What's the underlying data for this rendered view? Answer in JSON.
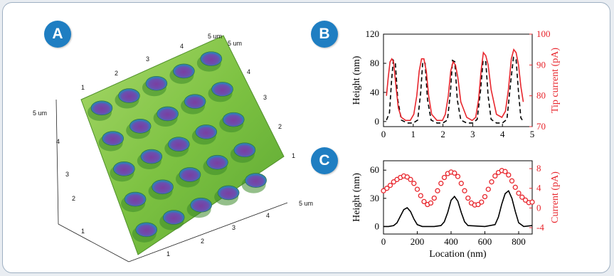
{
  "panels": {
    "a": {
      "label": "A"
    },
    "b": {
      "label": "B"
    },
    "c": {
      "label": "C"
    }
  },
  "afm": {
    "corner_labels": [
      "5 um",
      "5 um",
      "5 um",
      "5 um"
    ],
    "top_ticks": [
      "1",
      "2",
      "3",
      "4"
    ],
    "right_ticks": [
      "4",
      "3",
      "2",
      "1"
    ],
    "left_ticks": [
      "4",
      "3",
      "2",
      "1"
    ],
    "bottom_ticks": [
      "1",
      "2",
      "3",
      "4"
    ],
    "colors": {
      "surface": "#7dc242",
      "pit": "#7a3fa0",
      "pit_rim": "#2e7fb8"
    }
  },
  "chart_data": [
    {
      "type": "line",
      "panel": "B",
      "xlabel": "",
      "ylabel": "Height (nm)",
      "y2label": "Tip current (pA)",
      "xlim": [
        0,
        5
      ],
      "ylim": [
        -7,
        120
      ],
      "y2lim": [
        70,
        100
      ],
      "xticks": [
        0,
        1,
        2,
        3,
        4,
        5
      ],
      "yticks": [
        0,
        40,
        80,
        120
      ],
      "y2ticks": [
        70,
        80,
        90,
        100
      ],
      "series": [
        {
          "axis": "left",
          "style": "dashed",
          "color": "#000000",
          "x": [
            0.1,
            0.2,
            0.27,
            0.33,
            0.4,
            0.48,
            0.6,
            0.8,
            1.0,
            1.15,
            1.25,
            1.32,
            1.4,
            1.48,
            1.6,
            1.8,
            2.0,
            2.15,
            2.25,
            2.32,
            2.4,
            2.48,
            2.6,
            2.8,
            3.0,
            3.15,
            3.27,
            3.35,
            3.44,
            3.52,
            3.62,
            3.8,
            4.0,
            4.15,
            4.28,
            4.37,
            4.46,
            4.54,
            4.62,
            4.7
          ],
          "values": [
            2,
            12,
            55,
            84,
            80,
            30,
            2,
            -2,
            -2,
            2,
            40,
            82,
            80,
            30,
            2,
            -2,
            -2,
            2,
            40,
            84,
            82,
            30,
            2,
            -2,
            -2,
            3,
            45,
            84,
            82,
            35,
            3,
            -2,
            -2,
            3,
            55,
            88,
            85,
            40,
            5,
            0
          ]
        },
        {
          "axis": "right",
          "style": "solid",
          "color": "#e8262d",
          "x": [
            0.1,
            0.16,
            0.22,
            0.28,
            0.34,
            0.42,
            0.5,
            0.6,
            0.75,
            0.9,
            1.02,
            1.12,
            1.2,
            1.28,
            1.36,
            1.44,
            1.52,
            1.62,
            1.8,
            1.98,
            2.08,
            2.18,
            2.26,
            2.34,
            2.42,
            2.5,
            2.6,
            2.8,
            2.98,
            3.1,
            3.2,
            3.28,
            3.36,
            3.44,
            3.52,
            3.62,
            3.8,
            3.98,
            4.1,
            4.2,
            4.3,
            4.38,
            4.46,
            4.54,
            4.62,
            4.7
          ],
          "values": [
            80,
            86,
            91,
            92,
            91,
            83,
            76,
            73,
            72,
            72,
            74,
            80,
            88,
            92,
            92,
            88,
            80,
            74,
            72,
            72,
            74,
            80,
            88,
            91,
            90,
            86,
            78,
            73,
            72,
            73,
            79,
            88,
            94,
            93,
            90,
            82,
            74,
            73,
            75,
            82,
            92,
            95,
            94,
            90,
            83,
            78
          ]
        }
      ]
    },
    {
      "type": "line",
      "panel": "C",
      "xlabel": "Location (nm)",
      "ylabel": "Height (nm)",
      "y2label": "Current (pA)",
      "xlim": [
        0,
        880
      ],
      "ylim": [
        -8,
        70
      ],
      "y2lim": [
        -5.3,
        9.6
      ],
      "xticks": [
        0,
        200,
        400,
        600,
        800
      ],
      "yticks": [
        0,
        30,
        60
      ],
      "y2ticks": [
        -4,
        0,
        4,
        8
      ],
      "series": [
        {
          "axis": "left",
          "style": "solid",
          "color": "#000000",
          "x": [
            0,
            30,
            60,
            80,
            100,
            120,
            140,
            160,
            180,
            200,
            230,
            300,
            340,
            360,
            380,
            400,
            420,
            440,
            460,
            480,
            500,
            600,
            660,
            680,
            700,
            720,
            740,
            760,
            780,
            800,
            830,
            880
          ],
          "values": [
            0,
            0,
            1,
            4,
            11,
            18,
            20,
            16,
            8,
            2,
            0,
            0,
            1,
            5,
            15,
            28,
            32,
            27,
            15,
            5,
            1,
            0,
            2,
            10,
            24,
            35,
            38,
            30,
            16,
            4,
            0,
            1
          ]
        },
        {
          "axis": "right",
          "style": "open-circles",
          "color": "#e8262d",
          "x": [
            0,
            20,
            40,
            60,
            80,
            100,
            120,
            140,
            160,
            180,
            200,
            220,
            240,
            260,
            280,
            300,
            320,
            340,
            360,
            380,
            400,
            420,
            440,
            460,
            480,
            500,
            520,
            540,
            560,
            580,
            600,
            620,
            640,
            660,
            680,
            700,
            720,
            740,
            760,
            780,
            800,
            820,
            840,
            860,
            880
          ],
          "values": [
            3.5,
            4.0,
            4.6,
            5.3,
            5.8,
            6.2,
            6.5,
            6.3,
            5.8,
            5.0,
            3.8,
            2.5,
            1.3,
            0.7,
            1.0,
            2.0,
            3.5,
            5.0,
            6.2,
            7.0,
            7.3,
            7.1,
            6.4,
            5.0,
            3.5,
            2.0,
            1.0,
            0.6,
            0.7,
            1.2,
            2.3,
            3.8,
            5.3,
            6.5,
            7.2,
            7.6,
            7.4,
            6.7,
            5.5,
            4.2,
            3.0,
            2.2,
            1.6,
            1.1,
            1.2
          ]
        }
      ]
    }
  ]
}
